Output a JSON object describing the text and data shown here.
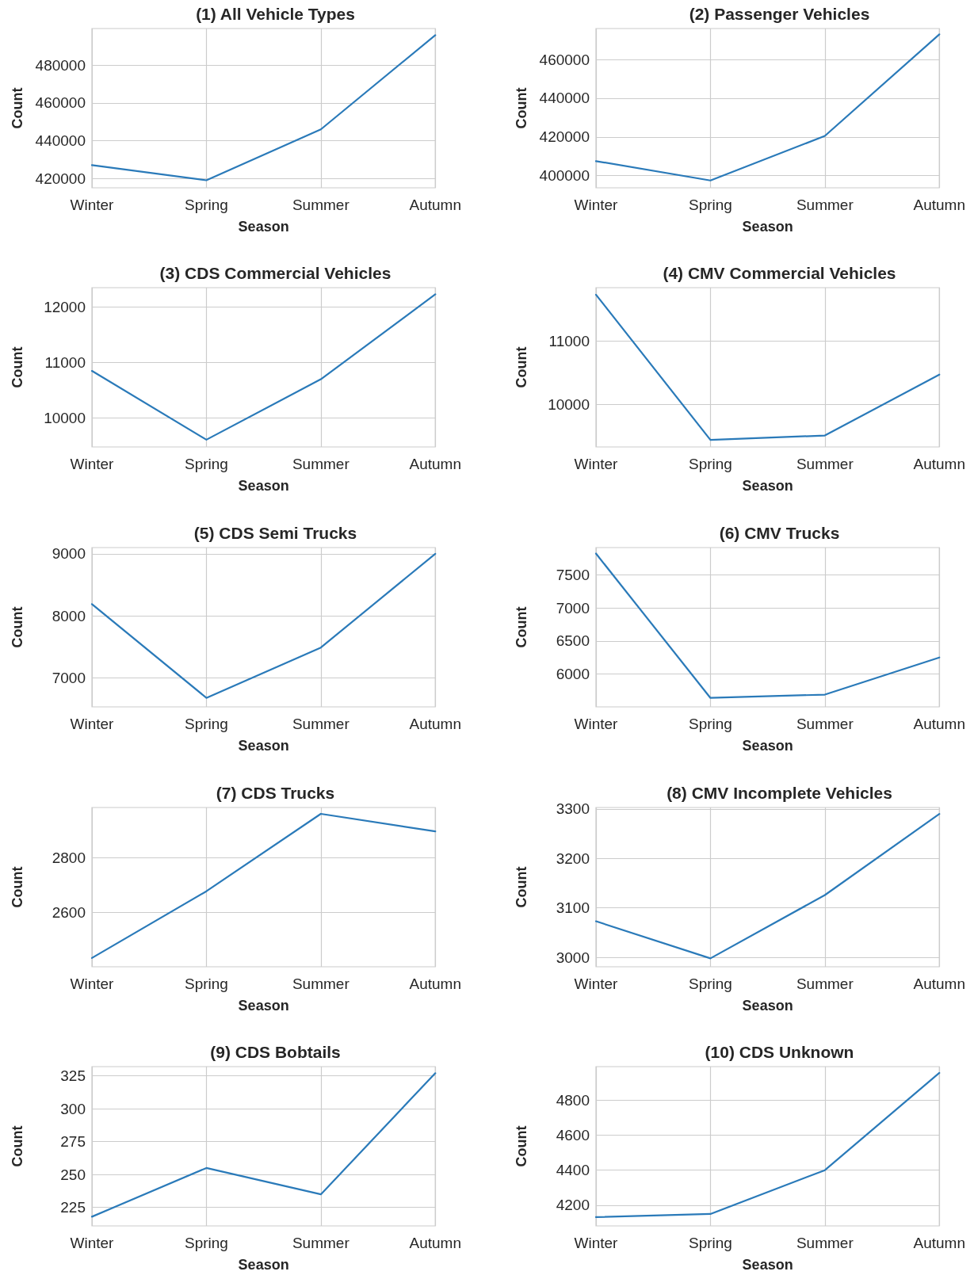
{
  "chart_data": [
    {
      "type": "line",
      "title": "(1) All Vehicle Types",
      "xlabel": "Season",
      "ylabel": "Count",
      "categories": [
        "Winter",
        "Spring",
        "Summer",
        "Autumn"
      ],
      "values": [
        427000,
        419000,
        446000,
        496000
      ],
      "color": "#2a7ab9",
      "ylim": [
        415000,
        499500
      ],
      "yticks": [
        420000,
        440000,
        460000,
        480000
      ],
      "grid": true
    },
    {
      "type": "line",
      "title": "(2) Passenger Vehicles",
      "xlabel": "Season",
      "ylabel": "Count",
      "categories": [
        "Winter",
        "Spring",
        "Summer",
        "Autumn"
      ],
      "values": [
        407500,
        397500,
        420500,
        473000
      ],
      "color": "#2a7ab9",
      "ylim": [
        393700,
        476000
      ],
      "yticks": [
        400000,
        420000,
        440000,
        460000
      ],
      "grid": true
    },
    {
      "type": "line",
      "title": "(3) CDS Commercial Vehicles",
      "xlabel": "Season",
      "ylabel": "Count",
      "categories": [
        "Winter",
        "Spring",
        "Summer",
        "Autumn"
      ],
      "values": [
        10850,
        9610,
        10700,
        12230
      ],
      "color": "#2a7ab9",
      "ylim": [
        9480,
        12350
      ],
      "yticks": [
        10000,
        11000,
        12000
      ],
      "grid": true
    },
    {
      "type": "line",
      "title": "(4) CMV Commercial Vehicles",
      "xlabel": "Season",
      "ylabel": "Count",
      "categories": [
        "Winter",
        "Spring",
        "Summer",
        "Autumn"
      ],
      "values": [
        11730,
        9440,
        9510,
        10470
      ],
      "color": "#2a7ab9",
      "ylim": [
        9330,
        11840
      ],
      "yticks": [
        10000,
        11000
      ],
      "grid": true
    },
    {
      "type": "line",
      "title": "(5) CDS Semi Trucks",
      "xlabel": "Season",
      "ylabel": "Count",
      "categories": [
        "Winter",
        "Spring",
        "Summer",
        "Autumn"
      ],
      "values": [
        8190,
        6680,
        7490,
        9000
      ],
      "color": "#2a7ab9",
      "ylim": [
        6535,
        9100
      ],
      "yticks": [
        7000,
        8000,
        9000
      ],
      "grid": true
    },
    {
      "type": "line",
      "title": "(6) CMV Trucks",
      "xlabel": "Season",
      "ylabel": "Count",
      "categories": [
        "Winter",
        "Spring",
        "Summer",
        "Autumn"
      ],
      "values": [
        7820,
        5640,
        5690,
        6250
      ],
      "color": "#2a7ab9",
      "ylim": [
        5505,
        7910
      ],
      "yticks": [
        6000,
        6500,
        7000,
        7500
      ],
      "grid": true
    },
    {
      "type": "line",
      "title": "(7) CDS Trucks",
      "xlabel": "Season",
      "ylabel": "Count",
      "categories": [
        "Winter",
        "Spring",
        "Summer",
        "Autumn"
      ],
      "values": [
        2435,
        2678,
        2960,
        2896
      ],
      "color": "#2a7ab9",
      "ylim": [
        2403,
        2983
      ],
      "yticks": [
        2600,
        2800
      ],
      "grid": true
    },
    {
      "type": "line",
      "title": "(8) CMV Incomplete Vehicles",
      "xlabel": "Season",
      "ylabel": "Count",
      "categories": [
        "Winter",
        "Spring",
        "Summer",
        "Autumn"
      ],
      "values": [
        3073,
        2998,
        3126,
        3290
      ],
      "color": "#2a7ab9",
      "ylim": [
        2981,
        3303
      ],
      "yticks": [
        3000,
        3100,
        3200,
        3300
      ],
      "grid": true
    },
    {
      "type": "line",
      "title": "(9) CDS Bobtails",
      "xlabel": "Season",
      "ylabel": "Count",
      "categories": [
        "Winter",
        "Spring",
        "Summer",
        "Autumn"
      ],
      "values": [
        218,
        255,
        235,
        327
      ],
      "color": "#2a7ab9",
      "ylim": [
        211,
        332
      ],
      "yticks": [
        225,
        250,
        275,
        300,
        325
      ],
      "grid": true
    },
    {
      "type": "line",
      "title": "(10) CDS Unknown",
      "xlabel": "Season",
      "ylabel": "Count",
      "categories": [
        "Winter",
        "Spring",
        "Summer",
        "Autumn"
      ],
      "values": [
        4132,
        4150,
        4400,
        4955
      ],
      "color": "#2a7ab9",
      "ylim": [
        4082,
        4991
      ],
      "yticks": [
        4200,
        4400,
        4600,
        4800
      ],
      "grid": true
    }
  ]
}
